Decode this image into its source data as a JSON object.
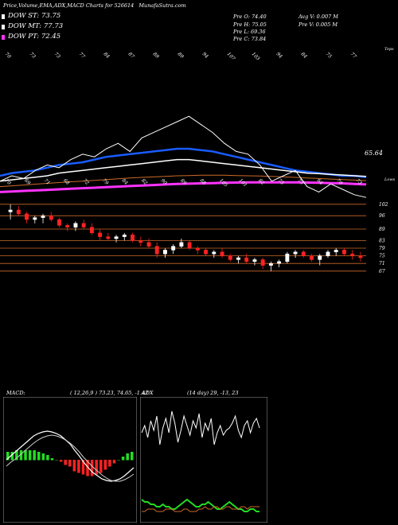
{
  "header": {
    "title": "Price,Volume,EMA,ADX,MACD Charts for 526614",
    "site": "MunafaSutra.com"
  },
  "legend": [
    {
      "label": "DOW ST: 73.75",
      "color": "#ffffff"
    },
    {
      "label": "DOW MT: 77.73",
      "color": "#ffffff"
    },
    {
      "label": "DOW PT: 72.45",
      "color": "#ff33ff"
    }
  ],
  "stats": {
    "open": "Pre O: 74.40",
    "high": "Pre H: 75.05",
    "low": "Pre L: 69.36",
    "close": "Pre C: 73.84",
    "avg_vol": "Avg V: 0.007 M",
    "pre_vol": "Pre V: 0.005 M"
  },
  "ema_panel": {
    "side_label": "Tops",
    "last_price_label": "65.64",
    "top_labels": [
      "70",
      "73",
      "73",
      "77",
      "84",
      "87",
      "89",
      "89",
      "94",
      "107",
      "103",
      "94",
      "84",
      "75",
      "77"
    ],
    "bottom_labels": [
      "70",
      "69",
      "71",
      "68",
      "72",
      "79",
      "84",
      "82",
      "90",
      "89",
      "88",
      "105",
      "101",
      "82",
      "75",
      "73",
      "64",
      "70",
      "73"
    ],
    "bottom_side_label": "Lows"
  },
  "candle_panel": {
    "price_levels": [
      102,
      96,
      89,
      83,
      79,
      75,
      71,
      67
    ],
    "colors": {
      "up": "#ffffff",
      "down": "#ff2222",
      "level": "#cc6a2a"
    }
  },
  "macd": {
    "label": "MACD:",
    "params": "( 12,26,9 ) 73.23, 74.65, -1.42"
  },
  "adx": {
    "label": "ADX",
    "params": "(14 day) 29, -13, 23"
  },
  "chart_data": [
    {
      "type": "line",
      "title": "EMA",
      "series": [
        {
          "values": [
            76,
            77,
            77.5,
            78,
            79,
            80,
            80.5,
            81,
            82,
            83,
            83.5,
            84,
            84.5,
            85,
            85.5,
            86,
            86,
            85.5,
            85,
            84,
            83,
            82,
            81,
            80,
            79,
            78,
            77.5,
            77,
            76.5,
            76,
            76,
            75.5
          ]
        },
        {
          "values": [
            74,
            74.5,
            75,
            75.5,
            76,
            77,
            77.5,
            78,
            78.5,
            79,
            79.5,
            80,
            80.5,
            81,
            81.5,
            82,
            82,
            81.5,
            81,
            80.5,
            80,
            79.5,
            79,
            78.5,
            78,
            77.5,
            77,
            76.8,
            76.5,
            76.3,
            76,
            75.8
          ]
        },
        {
          "values": [
            72,
            72.3,
            72.6,
            72.9,
            73.2,
            73.5,
            73.8,
            74,
            74.3,
            74.6,
            74.9,
            75.2,
            75.4,
            75.6,
            75.8,
            76,
            76.1,
            76.2,
            76.2,
            76.2,
            76.1,
            76,
            75.9,
            75.8,
            75.6,
            75.4,
            75.2,
            75,
            74.8,
            74.6,
            74.4,
            74.2
          ]
        },
        {
          "values": [
            70,
            70.2,
            70.4,
            70.6,
            70.8,
            71,
            71.2,
            71.4,
            71.6,
            71.8,
            72,
            72.2,
            72.4,
            72.6,
            72.8,
            73,
            73.1,
            73.2,
            73.3,
            73.4,
            73.5,
            73.6,
            73.6,
            73.6,
            73.6,
            73.6,
            73.5,
            73.4,
            73.3,
            73.2,
            73,
            72.8
          ]
        },
        {
          "values": [
            74,
            76,
            75,
            78,
            80,
            79,
            82,
            84,
            83,
            86,
            88,
            85,
            90,
            92,
            94,
            96,
            98,
            95,
            92,
            88,
            85,
            84,
            80,
            74,
            76,
            78,
            72,
            70,
            73,
            71,
            69,
            68
          ]
        }
      ]
    },
    {
      "type": "candlestick",
      "title": "Price",
      "candles": [
        [
          98,
          102,
          94,
          99
        ],
        [
          99,
          101,
          96,
          97
        ],
        [
          97,
          98,
          92,
          94
        ],
        [
          94,
          96,
          92,
          95
        ],
        [
          95,
          97,
          92,
          96
        ],
        [
          96,
          98,
          93,
          94
        ],
        [
          94,
          95,
          90,
          91
        ],
        [
          91,
          92,
          88,
          90
        ],
        [
          90,
          93,
          88,
          92
        ],
        [
          92,
          94,
          89,
          90
        ],
        [
          90,
          92,
          86,
          87
        ],
        [
          87,
          89,
          83,
          85
        ],
        [
          85,
          87,
          83,
          84
        ],
        [
          84,
          86,
          82,
          85
        ],
        [
          85,
          87,
          83,
          86
        ],
        [
          86,
          87,
          82,
          83
        ],
        [
          83,
          85,
          80,
          82
        ],
        [
          82,
          84,
          79,
          80
        ],
        [
          80,
          82,
          74,
          76
        ],
        [
          76,
          79,
          74,
          78
        ],
        [
          78,
          81,
          76,
          80
        ],
        [
          80,
          84,
          79,
          82
        ],
        [
          82,
          83,
          78,
          79
        ],
        [
          79,
          80,
          76,
          78
        ],
        [
          78,
          79,
          75,
          76
        ],
        [
          76,
          78,
          74,
          77
        ],
        [
          77,
          79,
          74,
          75
        ],
        [
          75,
          76,
          72,
          73
        ],
        [
          73,
          75,
          71,
          74
        ],
        [
          74,
          76,
          71,
          72
        ],
        [
          72,
          74,
          70,
          73
        ],
        [
          73,
          74,
          68,
          70
        ],
        [
          70,
          72,
          67,
          71
        ],
        [
          71,
          73,
          69,
          72
        ],
        [
          72,
          77,
          71,
          76
        ],
        [
          76,
          78,
          74,
          77
        ],
        [
          77,
          78,
          74,
          75
        ],
        [
          75,
          76,
          72,
          73
        ],
        [
          73,
          76,
          70,
          75
        ],
        [
          75,
          78,
          74,
          77
        ],
        [
          77,
          79,
          75,
          78
        ],
        [
          78,
          79,
          75,
          76
        ],
        [
          76,
          78,
          73,
          75
        ],
        [
          75,
          77,
          72,
          74
        ]
      ]
    },
    {
      "type": "line",
      "title": "MACD",
      "series": [
        {
          "values": [
            0,
            0.5,
            1,
            1.5,
            2,
            2.5,
            3,
            3.3,
            3.5,
            3.6,
            3.5,
            3.3,
            3,
            2.5,
            2,
            1.2,
            0.5,
            -0.3,
            -1,
            -1.6,
            -2,
            -2.4,
            -2.6,
            -2.7,
            -2.6,
            -2.4,
            -2,
            -1.5,
            -1
          ]
        },
        {
          "values": [
            -0.5,
            0,
            0.4,
            0.9,
            1.4,
            1.9,
            2.4,
            2.8,
            3.1,
            3.3,
            3.4,
            3.3,
            3.1,
            2.8,
            2.4,
            1.9,
            1.3,
            0.6,
            0,
            -0.6,
            -1.1,
            -1.6,
            -2,
            -2.3,
            -2.4,
            -2.4,
            -2.2,
            -1.9,
            -1.5
          ]
        }
      ],
      "histogram": [
        0.5,
        0.5,
        0.6,
        0.6,
        0.6,
        0.6,
        0.6,
        0.5,
        0.4,
        0.3,
        0.1,
        0,
        -0.1,
        -0.3,
        -0.4,
        -0.7,
        -0.8,
        -0.9,
        -1,
        -1,
        -0.9,
        -0.8,
        -0.6,
        -0.4,
        -0.2,
        0,
        0.2,
        0.4,
        0.5
      ]
    },
    {
      "type": "line",
      "title": "ADX",
      "series": [
        {
          "values": [
            35,
            38,
            33,
            40,
            36,
            42,
            30,
            37,
            41,
            35,
            44,
            39,
            31,
            36,
            42,
            38,
            34,
            40,
            37,
            43,
            33,
            39,
            36,
            41,
            30,
            35,
            38,
            34,
            36,
            37,
            39,
            42,
            36,
            33,
            38,
            40,
            35,
            39,
            41,
            37
          ]
        },
        {
          "values": [
            7,
            6,
            6,
            5,
            5,
            4,
            4,
            5,
            4,
            4,
            3,
            3,
            4,
            5,
            6,
            7,
            6,
            5,
            4,
            4,
            5,
            5,
            6,
            5,
            4,
            3,
            3,
            4,
            5,
            6,
            5,
            4,
            3,
            3,
            2,
            2,
            3,
            3,
            2,
            2
          ]
        },
        {
          "values": [
            2,
            2,
            3,
            3,
            3,
            2,
            2,
            2,
            3,
            3,
            3,
            2,
            2,
            2,
            3,
            3,
            2,
            2,
            2,
            3,
            3,
            4,
            3,
            3,
            4,
            4,
            3,
            3,
            4,
            4,
            3,
            3,
            3,
            4,
            4,
            3,
            4,
            4,
            4,
            4
          ]
        }
      ]
    }
  ]
}
